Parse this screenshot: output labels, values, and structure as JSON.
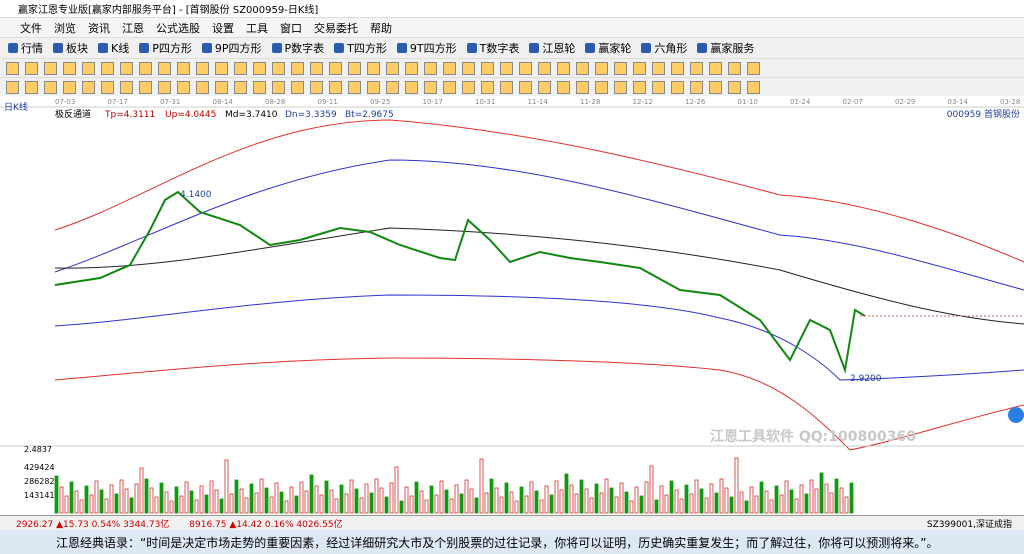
{
  "window": {
    "title": "赢家江恩专业版[赢家内部服务平台] - [首钢股份  SZ000959-日K线]"
  },
  "menu": [
    "文件",
    "浏览",
    "资讯",
    "江恩",
    "公式选股",
    "设置",
    "工具",
    "窗口",
    "交易委托",
    "帮助"
  ],
  "toolbar": [
    "行情",
    "板块",
    "K线",
    "P四方形",
    "9P四方形",
    "P数字表",
    "T四方形",
    "9T四方形",
    "T数字表",
    "江恩轮",
    "赢家轮",
    "六角形",
    "赢家服务"
  ],
  "dates": [
    "07-03",
    "07-17",
    "07-31",
    "08-14",
    "08-28",
    "09-11",
    "09-25",
    "10-17",
    "10-31",
    "11-14",
    "11-28",
    "12-12",
    "12-26",
    "01-10",
    "01-24",
    "02-07",
    "02-29",
    "03-14",
    "03-28"
  ],
  "chart": {
    "period": "日K线",
    "indicator": "极反通道",
    "params": [
      "Tp=4.3111",
      "Up=4.0445",
      "Md=3.7410",
      "Dn=3.3359",
      "Bt=2.9675"
    ],
    "stock": "000959 首钢股份",
    "high_label": "4.1400",
    "low_label": "2.9200",
    "watermark": "江恩工具软件   QQ:100800360"
  },
  "volume": {
    "labels": [
      "2.4837",
      "429424",
      "286282",
      "143141"
    ]
  },
  "status": {
    "sh": "2926.27 ▲15.73 0.54% 3344.73亿",
    "sz": "8916.75 ▲14.42 0.16% 4026.55亿",
    "index": "SZ399001,深证成指"
  },
  "quote": "江恩经典语录：“时间是决定市场走势的重要因素，经过详细研究大市及个别股票的过往记录，你将可以证明，历史确实重复发生；而了解过往，你将可以预测将来。”。"
}
